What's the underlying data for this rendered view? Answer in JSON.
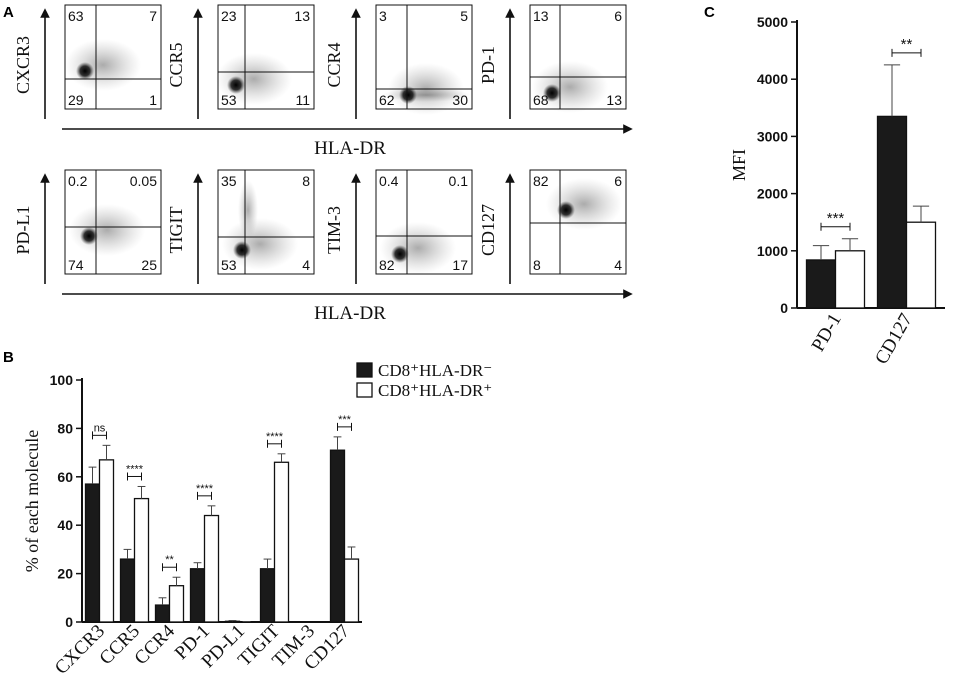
{
  "panel_a": {
    "label": "A",
    "x_axis_label": "HLA-DR",
    "rows": [
      {
        "plots": [
          {
            "marker": "CXCR3",
            "quadrants": {
              "tl": "63",
              "tr": "7",
              "bl": "29",
              "br": "1"
            }
          },
          {
            "marker": "CCR5",
            "quadrants": {
              "tl": "23",
              "tr": "13",
              "bl": "53",
              "br": "11"
            }
          },
          {
            "marker": "CCR4",
            "quadrants": {
              "tl": "3",
              "tr": "5",
              "bl": "62",
              "br": "30"
            }
          },
          {
            "marker": "PD-1",
            "quadrants": {
              "tl": "13",
              "tr": "6",
              "bl": "68",
              "br": "13"
            }
          }
        ]
      },
      {
        "plots": [
          {
            "marker": "PD-L1",
            "quadrants": {
              "tl": "0.2",
              "tr": "0.05",
              "bl": "74",
              "br": "25"
            }
          },
          {
            "marker": "TIGIT",
            "quadrants": {
              "tl": "35",
              "tr": "8",
              "bl": "53",
              "br": "4"
            }
          },
          {
            "marker": "TIM-3",
            "quadrants": {
              "tl": "0.4",
              "tr": "0.1",
              "bl": "82",
              "br": "17"
            }
          },
          {
            "marker": "CD127",
            "quadrants": {
              "tl": "82",
              "tr": "6",
              "bl": "8",
              "br": "4"
            }
          }
        ]
      }
    ]
  },
  "chart_data": [
    {
      "panel": "B",
      "type": "bar",
      "ylabel": "% of each molecule",
      "ylim": [
        0,
        100
      ],
      "yticks": [
        0,
        20,
        40,
        60,
        80,
        100
      ],
      "categories": [
        "CXCR3",
        "CCR5",
        "CCR4",
        "PD-1",
        "PD-L1",
        "TIGIT",
        "TIM-3",
        "CD127"
      ],
      "series": [
        {
          "name": "CD8⁺HLA-DR⁻",
          "color": "#1a1a1a",
          "values": [
            57,
            26,
            7,
            22,
            0.3,
            22,
            0,
            71
          ],
          "errors": [
            7,
            4,
            3,
            2.5,
            0.3,
            4,
            0,
            5.5
          ]
        },
        {
          "name": "CD8⁺HLA-DR⁺",
          "color": "#ffffff",
          "values": [
            67,
            51,
            15,
            44,
            0.1,
            66,
            0,
            26
          ],
          "errors": [
            6,
            5,
            3.5,
            4,
            0.1,
            3.5,
            0,
            5
          ]
        }
      ],
      "significance": [
        "ns",
        "****",
        "**",
        "****",
        "",
        "****",
        "",
        "***"
      ],
      "legend": {
        "position": "top-right"
      }
    },
    {
      "panel": "C",
      "type": "bar",
      "ylabel": "MFI",
      "ylim": [
        0,
        5000
      ],
      "yticks": [
        0,
        1000,
        2000,
        3000,
        4000,
        5000
      ],
      "categories": [
        "PD-1",
        "CD127"
      ],
      "series": [
        {
          "color": "#1a1a1a",
          "values": [
            840,
            3350
          ],
          "errors": [
            250,
            900
          ]
        },
        {
          "color": "#ffffff",
          "values": [
            1000,
            1500
          ],
          "errors": [
            210,
            280
          ]
        }
      ],
      "significance": [
        "***",
        "**"
      ]
    }
  ],
  "labels": {
    "b": "B",
    "c": "C"
  }
}
